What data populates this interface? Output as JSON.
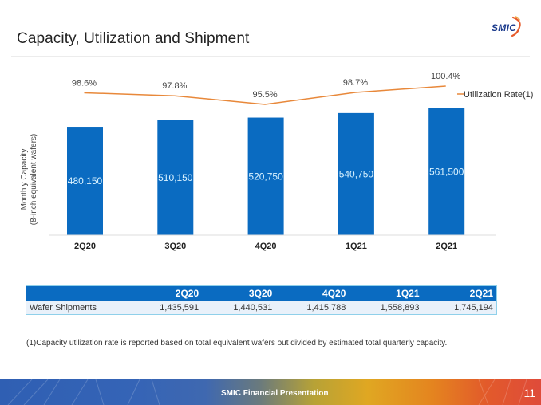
{
  "slide": {
    "title": "Capacity, Utilization and Shipment",
    "logo_text": "SMIC",
    "footer_text": "SMIC Financial Presentation",
    "page_number": "11",
    "footnote": "(1)Capacity utilization rate is reported based on total equivalent wafers out divided by estimated total quarterly capacity."
  },
  "colors": {
    "bar": "#0a6bc1",
    "line": "#e8883a",
    "bar_label": "#d9f2ff",
    "table_header": "#0a6bc1"
  },
  "chart_data": {
    "type": "bar+line",
    "title": "",
    "categories": [
      "2Q20",
      "3Q20",
      "4Q20",
      "1Q21",
      "2Q21"
    ],
    "series": [
      {
        "name": "Monthly Capacity",
        "type": "bar",
        "values": [
          480150,
          510150,
          520750,
          540750,
          561500
        ],
        "labels": [
          "480,150",
          "510,150",
          "520,750",
          "540,750",
          "561,500"
        ]
      },
      {
        "name": "Utilization Rate(1)",
        "type": "line",
        "values": [
          98.6,
          97.8,
          95.5,
          98.7,
          100.4
        ],
        "labels": [
          "98.6%",
          "97.8%",
          "95.5%",
          "98.7%",
          "100.4%"
        ]
      }
    ],
    "ylabel": [
      "Monthly Capacity",
      "(8-inch equivalent wafers)"
    ],
    "xlabel": "",
    "legend": {
      "entries": [
        "Utilization Rate(1)"
      ],
      "placement": "top-right"
    },
    "grid": false
  },
  "table": {
    "headers": [
      "",
      "2Q20",
      "3Q20",
      "4Q20",
      "1Q21",
      "2Q21"
    ],
    "rows": [
      [
        "Wafer Shipments",
        "1,435,591",
        "1,440,531",
        "1,415,788",
        "1,558,893",
        "1,745,194"
      ]
    ]
  }
}
